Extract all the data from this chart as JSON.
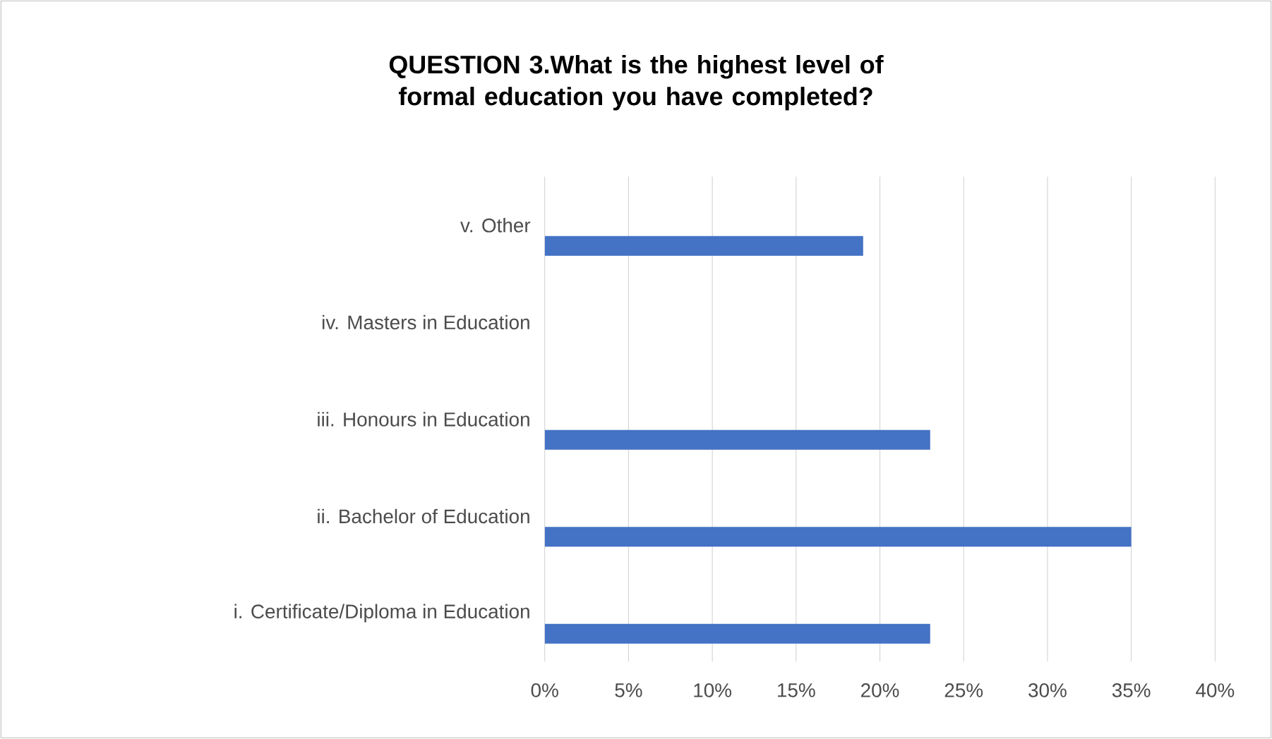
{
  "chart_data": {
    "type": "bar",
    "orientation": "horizontal",
    "title": "QUESTION 3.What is the highest level of formal education you have completed?",
    "categories": [
      "v. Other",
      "iv. Masters in Education",
      "iii. Honours in Education",
      "ii. Bachelor of Education",
      "i. Certificate/Diploma in Education"
    ],
    "values": [
      19,
      0,
      23,
      35,
      23
    ],
    "color": "#4472c4",
    "xlim": [
      0,
      40
    ],
    "xticks": [
      {
        "value": 0,
        "label": "0%"
      },
      {
        "value": 5,
        "label": "5%"
      },
      {
        "value": 10,
        "label": "10%"
      },
      {
        "value": 15,
        "label": "15%"
      },
      {
        "value": 20,
        "label": "20%"
      },
      {
        "value": 25,
        "label": "25%"
      },
      {
        "value": 30,
        "label": "30%"
      },
      {
        "value": 35,
        "label": "35%"
      },
      {
        "value": 40,
        "label": "40%"
      }
    ],
    "grid": "x"
  }
}
